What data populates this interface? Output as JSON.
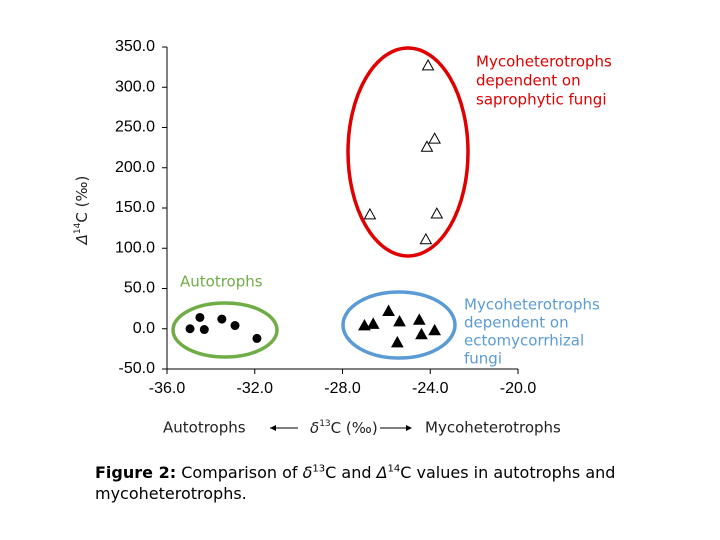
{
  "chart_data": {
    "type": "scatter",
    "xlim": [
      -36,
      -20
    ],
    "xticks": [
      {
        "value": -36,
        "label": "-36.0"
      },
      {
        "value": -32,
        "label": "-32.0"
      },
      {
        "value": -28,
        "label": "-28.0"
      },
      {
        "value": -24,
        "label": "-24.0"
      },
      {
        "value": -20,
        "label": "-20.0"
      }
    ],
    "ylim": [
      -50,
      350
    ],
    "yticks": [
      {
        "value": -50,
        "label": "-50.0"
      },
      {
        "value": 0,
        "label": "0.0"
      },
      {
        "value": 50,
        "label": "50.0"
      },
      {
        "value": 100,
        "label": "100.0"
      },
      {
        "value": 150,
        "label": "150.0"
      },
      {
        "value": 200,
        "label": "200.0"
      },
      {
        "value": 250,
        "label": "250.0"
      },
      {
        "value": 300,
        "label": "300.0"
      },
      {
        "value": 350,
        "label": "350.0"
      }
    ],
    "ylabel": [
      "Δ",
      "14",
      "C (‰)"
    ],
    "xlabel": {
      "left": "Autotrophs",
      "symbol": "δ",
      "sup": "13",
      "rest": "C (‰)",
      "right": "Mycoheterotrophs"
    },
    "series": [
      {
        "marker": "circle",
        "color": "#000000",
        "x": [
          -34.95,
          -34.5,
          -34.3,
          -33.5,
          -32.9,
          -31.9
        ],
        "values": [
          0,
          14,
          -1,
          12,
          4,
          -12
        ]
      },
      {
        "marker": "open-triangle",
        "color": "#000000",
        "x": [
          -24.1,
          -23.8,
          -24.15,
          -26.75,
          -23.7,
          -24.2
        ],
        "values": [
          327,
          236,
          226,
          142,
          143,
          111
        ]
      },
      {
        "marker": "triangle",
        "color": "#000000",
        "x": [
          -27.0,
          -26.6,
          -25.9,
          -25.4,
          -25.5,
          -24.5,
          -24.4,
          -23.8
        ],
        "values": [
          4,
          6,
          22,
          9,
          -17,
          11,
          -7,
          -2
        ]
      }
    ],
    "annotations": [
      {
        "lines": [
          "Mycoheterotrophs",
          "dependent on",
          "saprophytic fungi"
        ],
        "color": "#e00000"
      },
      {
        "lines": [
          "Autotrophs"
        ],
        "color": "#70ad47"
      },
      {
        "lines": [
          "Mycoheterotrophs",
          "dependent on",
          "ectomycorrhizal",
          "fungi"
        ],
        "color": "#5b9bd5"
      }
    ]
  },
  "caption": [
    {
      "text": "Figure 2:",
      "bold": true
    },
    {
      "text": " Comparison of "
    },
    {
      "text": "δ",
      "italic": true
    },
    {
      "text": "13",
      "sup": true
    },
    {
      "text": "C and "
    },
    {
      "text": "Δ",
      "italic": true
    },
    {
      "text": "14",
      "sup": true
    },
    {
      "text": "C values in autotrophs and mycoheterotrophs."
    }
  ]
}
